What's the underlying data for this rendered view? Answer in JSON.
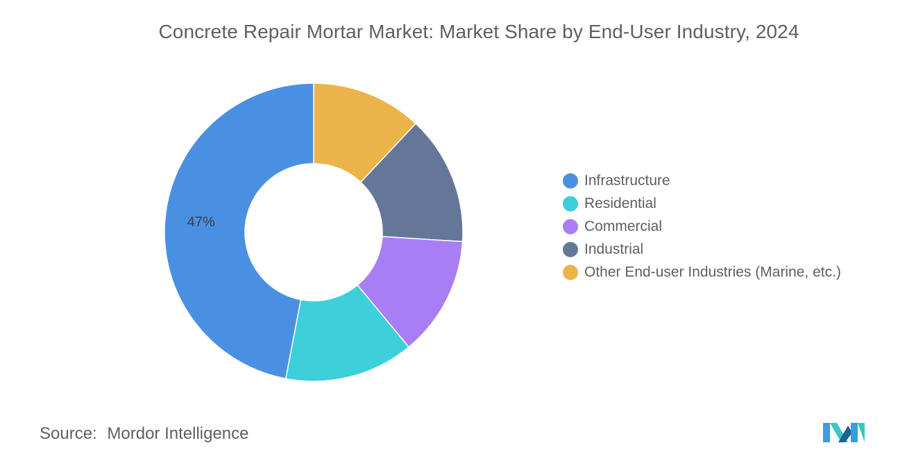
{
  "title": "Concrete Repair Mortar Market: Market Share by End-User Industry, 2024",
  "source": {
    "label": "Source:",
    "value": "Mordor Intelligence"
  },
  "chart_data": {
    "type": "pie",
    "donut": true,
    "title": "Concrete Repair Mortar Market: Market Share by End-User Industry, 2024",
    "start_angle_deg": 0,
    "direction": "clockwise",
    "legend_position": "right",
    "slices": [
      {
        "label": "Other End-user Industries (Marine, etc.)",
        "value": 12,
        "color": "#ebb44b"
      },
      {
        "label": "Industrial",
        "value": 14,
        "color": "#657798"
      },
      {
        "label": "Commercial",
        "value": 13,
        "color": "#a97ef5"
      },
      {
        "label": "Residential",
        "value": 14,
        "color": "#3dcfda"
      },
      {
        "label": "Infrastructure",
        "value": 47,
        "color": "#4a90e2",
        "data_label": "47%"
      }
    ],
    "legend": [
      {
        "label": "Infrastructure",
        "color": "#4a90e2"
      },
      {
        "label": "Residential",
        "color": "#3dcfda"
      },
      {
        "label": "Commercial",
        "color": "#a97ef5"
      },
      {
        "label": "Industrial",
        "color": "#657798"
      },
      {
        "label": "Other End-user Industries (Marine, etc.)",
        "color": "#ebb44b"
      }
    ]
  },
  "logo": {
    "icon": "mordor-intelligence-logo-icon",
    "colors": [
      "#3a9ed8",
      "#39c7c1",
      "#1f5f93"
    ]
  }
}
